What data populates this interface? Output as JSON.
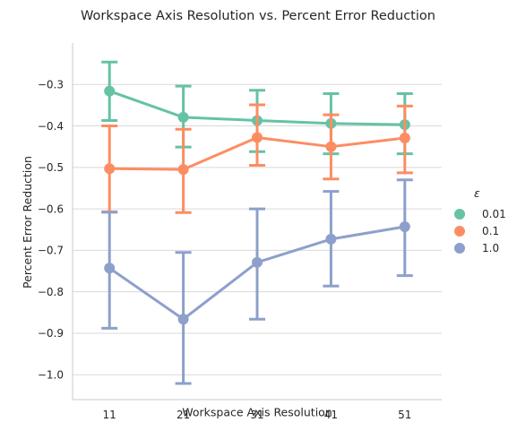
{
  "chart_data": {
    "type": "line",
    "title": "Workspace Axis Resolution vs. Percent Error Reduction",
    "xlabel": "Workspace Axis Resolution",
    "ylabel": "Percent Error Reduction",
    "categories": [
      "11",
      "21",
      "31",
      "41",
      "51"
    ],
    "yticks": [
      "−0.3",
      "−0.4",
      "−0.5",
      "−0.6",
      "−0.7",
      "−0.8",
      "−0.9",
      "−1.0"
    ],
    "ytick_values": [
      -0.3,
      -0.4,
      -0.5,
      -0.6,
      -0.7,
      -0.8,
      -0.9,
      -1.0
    ],
    "ylim": [
      -1.06,
      -0.2
    ],
    "grid": "horizontal",
    "legend": {
      "title": "ε",
      "placement": "right"
    },
    "series": [
      {
        "name": "0.01",
        "color": "#66c2a5",
        "values": [
          -0.316,
          -0.379,
          -0.387,
          -0.394,
          -0.397
        ],
        "err_low": [
          -0.387,
          -0.451,
          -0.462,
          -0.467,
          -0.467
        ],
        "err_high": [
          -0.246,
          -0.304,
          -0.314,
          -0.322,
          -0.322
        ]
      },
      {
        "name": "0.1",
        "color": "#fc8d62",
        "values": [
          -0.503,
          -0.505,
          -0.428,
          -0.45,
          -0.429
        ],
        "err_low": [
          -0.607,
          -0.609,
          -0.495,
          -0.528,
          -0.513
        ],
        "err_high": [
          -0.4,
          -0.408,
          -0.349,
          -0.373,
          -0.352
        ]
      },
      {
        "name": "1.0",
        "color": "#8da0cb",
        "values": [
          -0.743,
          -0.866,
          -0.729,
          -0.673,
          -0.643
        ],
        "err_low": [
          -0.888,
          -1.021,
          -0.866,
          -0.786,
          -0.761
        ],
        "err_high": [
          -0.608,
          -0.705,
          -0.6,
          -0.558,
          -0.53
        ]
      }
    ]
  }
}
